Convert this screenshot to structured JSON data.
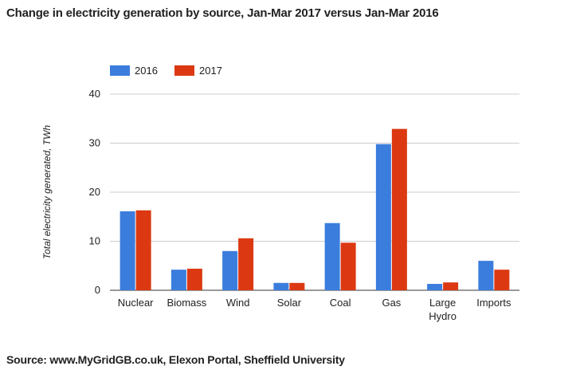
{
  "title": "Change in electricity generation by source, Jan-Mar 2017 versus Jan-Mar 2016",
  "source": "Source: www.MyGridGB.co.uk, Elexon Portal, Sheffield University",
  "chart_data": {
    "type": "bar",
    "title": "Change in electricity generation by source, Jan-Mar 2017 versus Jan-Mar 2016",
    "xlabel": "",
    "ylabel": "Total electricity generated, TWh",
    "ylim": [
      0,
      40
    ],
    "yticks": [
      0,
      10,
      20,
      30,
      40
    ],
    "grid": true,
    "legend_position": "top-left",
    "categories": [
      [
        "Nuclear"
      ],
      [
        "Biomass"
      ],
      [
        "Wind"
      ],
      [
        "Solar"
      ],
      [
        "Coal"
      ],
      [
        "Gas"
      ],
      [
        "Large",
        "Hydro"
      ],
      [
        "Imports"
      ]
    ],
    "series": [
      {
        "name": "2016",
        "color": "#3b7ddd",
        "values": [
          16.1,
          4.2,
          8.0,
          1.5,
          13.7,
          29.8,
          1.3,
          6.0
        ]
      },
      {
        "name": "2017",
        "color": "#dc3912",
        "values": [
          16.3,
          4.4,
          10.6,
          1.5,
          9.7,
          32.9,
          1.6,
          4.2
        ]
      }
    ]
  }
}
